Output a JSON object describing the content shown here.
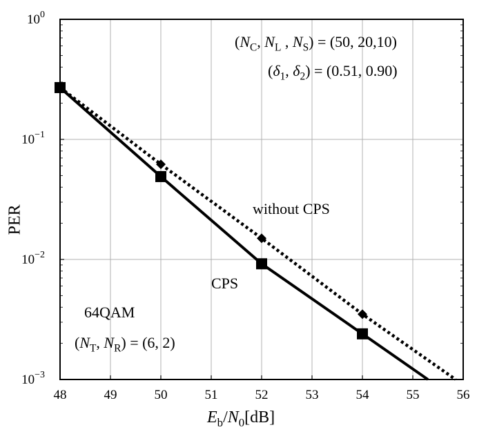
{
  "chart_data": {
    "type": "line",
    "xlabel_parts": {
      "e": "E",
      "e_sub": "b",
      "slash": "/",
      "n": "N",
      "n_sub": "0",
      "unit": "[dB]"
    },
    "ylabel": "PER",
    "xlim": [
      48,
      56
    ],
    "ylim": [
      0.001,
      1
    ],
    "yscale": "log",
    "grid": true,
    "x_ticks": [
      "48",
      "49",
      "50",
      "51",
      "52",
      "53",
      "54",
      "55",
      "56"
    ],
    "y_ticks": [
      {
        "value": 1,
        "base": "10",
        "exp": "0"
      },
      {
        "value": 0.1,
        "base": "10",
        "exp": "−1"
      },
      {
        "value": 0.01,
        "base": "10",
        "exp": "−2"
      },
      {
        "value": 0.001,
        "base": "10",
        "exp": "−3"
      }
    ],
    "series": [
      {
        "name": "CPS",
        "style": "solid",
        "marker": "square",
        "x": [
          48,
          50,
          52,
          54,
          55.3
        ],
        "y": [
          0.27,
          0.049,
          0.0092,
          0.0024,
          0.001
        ],
        "marker_count": 4
      },
      {
        "name": "without CPS",
        "style": "dotted",
        "marker": "diamond",
        "x": [
          48,
          50,
          52,
          54,
          55.85
        ],
        "y": [
          0.27,
          0.062,
          0.015,
          0.0035,
          0.001
        ],
        "marker_count": 4
      }
    ],
    "annotations": {
      "params_line1": {
        "open": "(",
        "a": "N",
        "a_sub": "C",
        "sep1": ", ",
        "b": "N",
        "b_sub": "L",
        "sep2": " , ",
        "c": "N",
        "c_sub": "S",
        "rest": ") = (50, 20,10)"
      },
      "params_line2": {
        "open": "(",
        "a": "δ",
        "a_sub": "1",
        "sep": ", ",
        "b": "δ",
        "b_sub": "2",
        "rest": ") = (0.51, 0.90)"
      },
      "label_without_cps": "without CPS",
      "label_cps": "CPS",
      "modulation": "64QAM",
      "antennas": {
        "open": "(",
        "a": "N",
        "a_sub": "T",
        "sep": ", ",
        "b": "N",
        "b_sub": "R",
        "rest": ") = (6, 2)"
      }
    },
    "colors": {
      "line": "#000000",
      "grid": "#b0b0b0"
    }
  }
}
